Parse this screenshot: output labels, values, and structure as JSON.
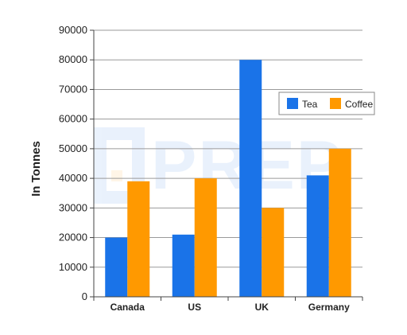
{
  "chart_data": {
    "type": "bar",
    "title": "",
    "xlabel": "",
    "ylabel": "In Tonnes",
    "categories": [
      "Canada",
      "US",
      "UK",
      "Germany"
    ],
    "series": [
      {
        "name": "Tea",
        "color": "#1a73e8",
        "values": [
          20000,
          21000,
          80000,
          41000
        ]
      },
      {
        "name": "Coffee",
        "color": "#ff9900",
        "values": [
          39000,
          40000,
          30000,
          50000
        ]
      }
    ],
    "ylim": [
      0,
      90000
    ],
    "yticks": [
      0,
      10000,
      20000,
      30000,
      40000,
      50000,
      60000,
      70000,
      80000,
      90000
    ],
    "grid": true,
    "legend_position": "right"
  },
  "watermark": {
    "text": "PREP"
  }
}
